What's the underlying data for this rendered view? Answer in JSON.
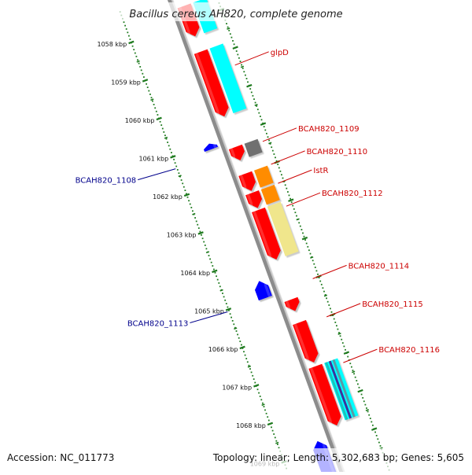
{
  "title": "Bacillus cereus AH820, complete genome",
  "footer": {
    "accession": "Accession: NC_011773",
    "summary": "Topology: linear; Length: 5,302,683 bp; Genes: 5,605"
  },
  "ruler": {
    "ticks": [
      {
        "kbp": 1058,
        "label": "1058 kbp"
      },
      {
        "kbp": 1059,
        "label": "1059 kbp"
      },
      {
        "kbp": 1060,
        "label": "1060 kbp"
      },
      {
        "kbp": 1061,
        "label": "1061 kbp"
      },
      {
        "kbp": 1062,
        "label": "1062 kbp"
      },
      {
        "kbp": 1063,
        "label": "1063 kbp"
      },
      {
        "kbp": 1064,
        "label": "1064 kbp"
      },
      {
        "kbp": 1065,
        "label": "1065 kbp"
      },
      {
        "kbp": 1066,
        "label": "1066 kbp"
      },
      {
        "kbp": 1067,
        "label": "1067 kbp"
      },
      {
        "kbp": 1068,
        "label": "1068 kbp"
      },
      {
        "kbp": 1069,
        "label": "1069 kbp"
      }
    ]
  },
  "colors": {
    "cds": "#ff0000",
    "reverse_cds": "#0000ff",
    "label_forward": "#cc0000",
    "label_reverse": "#00008b",
    "ruler": "#1e7a1e",
    "backbone": "#8c8c8c",
    "cyan": "#00ffff",
    "grey": "#707070",
    "orange": "#ff8c00",
    "khaki": "#f0e68c"
  },
  "genes": [
    {
      "name": "",
      "strand": "fwd",
      "start": 1057.6,
      "end": 1058.4
    },
    {
      "name": "glpD",
      "strand": "fwd",
      "start": 1058.8,
      "end": 1060.5
    },
    {
      "name": "BCAH820_1108",
      "strand": "rev",
      "start": 1061.0,
      "end": 1061.15
    },
    {
      "name": "BCAH820_1109",
      "strand": "fwd",
      "start": 1061.3,
      "end": 1061.65
    },
    {
      "name": "BCAH820_1110",
      "strand": "fwd",
      "start": 1062.0,
      "end": 1062.45
    },
    {
      "name": "IstR",
      "strand": "fwd",
      "start": 1062.5,
      "end": 1062.9
    },
    {
      "name": "BCAH820_1112",
      "strand": "fwd",
      "start": 1062.95,
      "end": 1064.25
    },
    {
      "name": "BCAH820_1113",
      "strand": "rev",
      "start": 1064.6,
      "end": 1065.05
    },
    {
      "name": "BCAH820_1114",
      "strand": "fwd",
      "start": 1065.3,
      "end": 1065.6
    },
    {
      "name": "BCAH820_1115",
      "strand": "fwd",
      "start": 1065.9,
      "end": 1066.95
    },
    {
      "name": "BCAH820_1116",
      "strand": "fwd",
      "start": 1067.05,
      "end": 1068.6
    },
    {
      "name": "",
      "strand": "rev",
      "start": 1068.8,
      "end": 1069.7
    }
  ],
  "features": [
    {
      "gene": "",
      "color": "cyan",
      "start": 1057.6,
      "end": 1058.4
    },
    {
      "gene": "glpD",
      "color": "cyan",
      "start": 1058.8,
      "end": 1060.5
    },
    {
      "gene": "BCAH820_1109",
      "color": "grey",
      "start": 1061.3,
      "end": 1061.65
    },
    {
      "gene": "BCAH820_1110",
      "color": "orange",
      "start": 1062.0,
      "end": 1062.45
    },
    {
      "gene": "IstR",
      "color": "orange",
      "start": 1062.5,
      "end": 1062.9
    },
    {
      "gene": "BCAH820_1112",
      "color": "khaki",
      "start": 1062.95,
      "end": 1064.25
    },
    {
      "gene": "BCAH820_1116",
      "color": "cyan",
      "start": 1067.05,
      "end": 1068.55
    }
  ],
  "labels": [
    {
      "text": "glpD",
      "strand": "fwd",
      "kbp": 1059.4
    },
    {
      "text": "BCAH820_1109",
      "strand": "fwd",
      "kbp": 1061.4
    },
    {
      "text": "BCAH820_1110",
      "strand": "fwd",
      "kbp": 1062.0
    },
    {
      "text": "IstR",
      "strand": "fwd",
      "kbp": 1062.5
    },
    {
      "text": "BCAH820_1112",
      "strand": "fwd",
      "kbp": 1063.1
    },
    {
      "text": "BCAH820_1114",
      "strand": "fwd",
      "kbp": 1065.0
    },
    {
      "text": "BCAH820_1115",
      "strand": "fwd",
      "kbp": 1066.0
    },
    {
      "text": "BCAH820_1116",
      "strand": "fwd",
      "kbp": 1067.2
    },
    {
      "text": "BCAH820_1108",
      "strand": "rev",
      "kbp": 1061.3
    },
    {
      "text": "BCAH820_1113",
      "strand": "rev",
      "kbp": 1065.05
    }
  ]
}
